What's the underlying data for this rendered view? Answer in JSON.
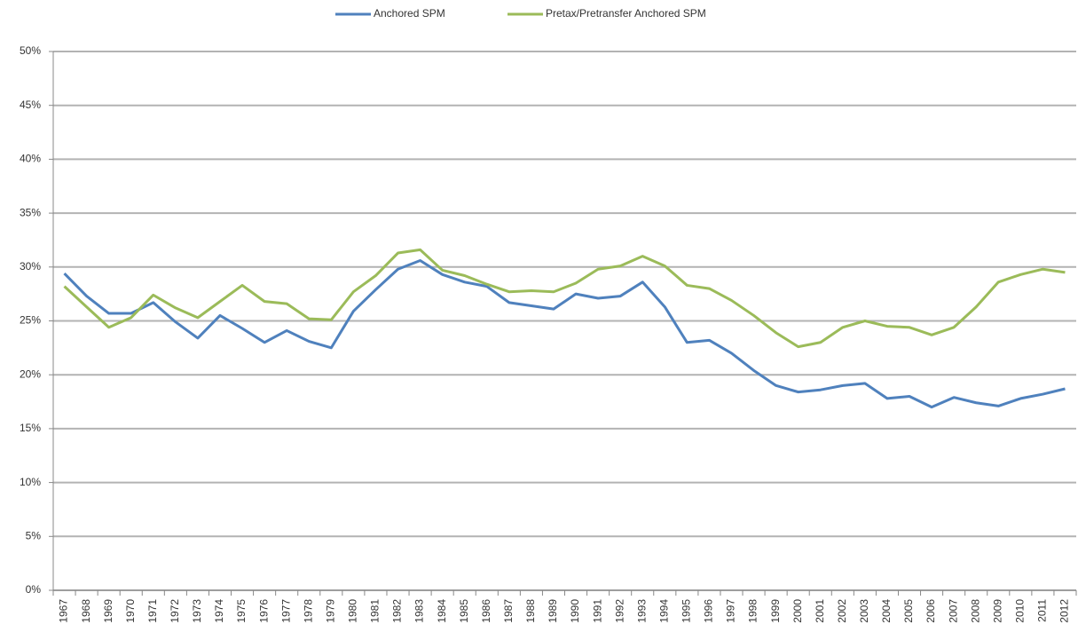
{
  "chart_data": {
    "type": "line",
    "categories": [
      "1967",
      "1968",
      "1969",
      "1970",
      "1971",
      "1972",
      "1973",
      "1974",
      "1975",
      "1976",
      "1977",
      "1978",
      "1979",
      "1980",
      "1981",
      "1982",
      "1983",
      "1984",
      "1985",
      "1986",
      "1987",
      "1988",
      "1989",
      "1990",
      "1991",
      "1992",
      "1993",
      "1994",
      "1995",
      "1996",
      "1997",
      "1998",
      "1999",
      "2000",
      "2001",
      "2002",
      "2003",
      "2004",
      "2005",
      "2006",
      "2007",
      "2008",
      "2009",
      "2010",
      "2011",
      "2012"
    ],
    "series": [
      {
        "name": "Anchored SPM",
        "color": "#4f81bd",
        "values": [
          29.4,
          27.3,
          25.7,
          25.7,
          26.7,
          24.9,
          23.4,
          25.5,
          24.3,
          23.0,
          24.1,
          23.1,
          22.5,
          25.9,
          27.9,
          29.8,
          30.6,
          29.3,
          28.6,
          28.2,
          26.7,
          26.4,
          26.1,
          27.5,
          27.1,
          27.3,
          28.6,
          26.3,
          23.0,
          23.2,
          22.0,
          20.4,
          19.0,
          18.4,
          18.6,
          19.0,
          19.2,
          17.8,
          18.0,
          17.0,
          17.9,
          17.4,
          17.1,
          17.8,
          18.2,
          18.7
        ]
      },
      {
        "name": "Pretax/Pretransfer Anchored SPM",
        "color": "#9bbb59",
        "values": [
          28.2,
          26.3,
          24.4,
          25.3,
          27.4,
          26.2,
          25.3,
          26.8,
          28.3,
          26.8,
          26.6,
          25.2,
          25.1,
          27.7,
          29.2,
          31.3,
          31.6,
          29.7,
          29.2,
          28.4,
          27.7,
          27.8,
          27.7,
          28.5,
          29.8,
          30.1,
          31.0,
          30.1,
          28.3,
          28.0,
          26.9,
          25.5,
          23.9,
          22.6,
          23.0,
          24.4,
          25.0,
          24.5,
          24.4,
          23.7,
          24.4,
          26.3,
          28.6,
          29.3,
          29.8,
          29.5
        ]
      }
    ],
    "ylim": [
      0,
      50
    ],
    "yticks": [
      {
        "value": 0,
        "label": "0%"
      },
      {
        "value": 5,
        "label": "5%"
      },
      {
        "value": 10,
        "label": "10%"
      },
      {
        "value": 15,
        "label": "15%"
      },
      {
        "value": 20,
        "label": "20%"
      },
      {
        "value": 25,
        "label": "25%"
      },
      {
        "value": 30,
        "label": "30%"
      },
      {
        "value": 35,
        "label": "35%"
      },
      {
        "value": 40,
        "label": "40%"
      },
      {
        "value": 45,
        "label": "45%"
      },
      {
        "value": 50,
        "label": "50%"
      }
    ],
    "grid": true,
    "legend": "top"
  }
}
